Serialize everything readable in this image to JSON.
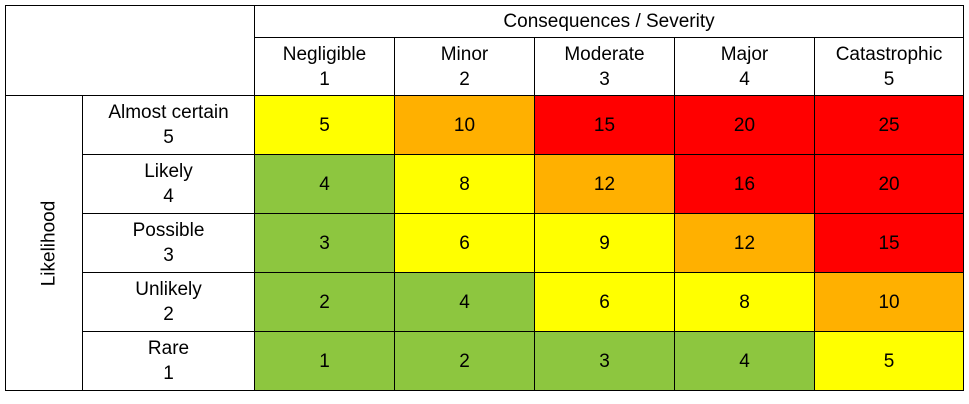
{
  "chart_data": {
    "type": "heatmap",
    "title": "Consequences / Severity",
    "ylabel": "Likelihood",
    "columns": [
      {
        "name": "Negligible",
        "level": "1"
      },
      {
        "name": "Minor",
        "level": "2"
      },
      {
        "name": "Moderate",
        "level": "3"
      },
      {
        "name": "Major",
        "level": "4"
      },
      {
        "name": "Catastrophic",
        "level": "5"
      }
    ],
    "rows": [
      {
        "name": "Almost certain",
        "level": "5",
        "values": [
          5,
          10,
          15,
          20,
          25
        ]
      },
      {
        "name": "Likely",
        "level": "4",
        "values": [
          4,
          8,
          12,
          16,
          20
        ]
      },
      {
        "name": "Possible",
        "level": "3",
        "values": [
          3,
          6,
          9,
          12,
          15
        ]
      },
      {
        "name": "Unlikely",
        "level": "2",
        "values": [
          2,
          4,
          6,
          8,
          10
        ]
      },
      {
        "name": "Rare",
        "level": "1",
        "values": [
          1,
          2,
          3,
          4,
          5
        ]
      }
    ],
    "colors": {
      "low": "#8dc63f",
      "medium": "#ffff00",
      "high": "#ffb000",
      "extreme": "#ff0000"
    },
    "color_bands": [
      {
        "max": 4,
        "color": "low"
      },
      {
        "max": 9,
        "color": "medium"
      },
      {
        "max": 12,
        "color": "high"
      },
      {
        "max": 25,
        "color": "extreme"
      }
    ],
    "cell_colors": [
      [
        "medium",
        "high",
        "extreme",
        "extreme",
        "extreme"
      ],
      [
        "low",
        "medium",
        "high",
        "extreme",
        "extreme"
      ],
      [
        "low",
        "medium",
        "medium",
        "high",
        "extreme"
      ],
      [
        "low",
        "low",
        "medium",
        "medium",
        "high"
      ],
      [
        "low",
        "low",
        "low",
        "low",
        "medium"
      ]
    ]
  }
}
